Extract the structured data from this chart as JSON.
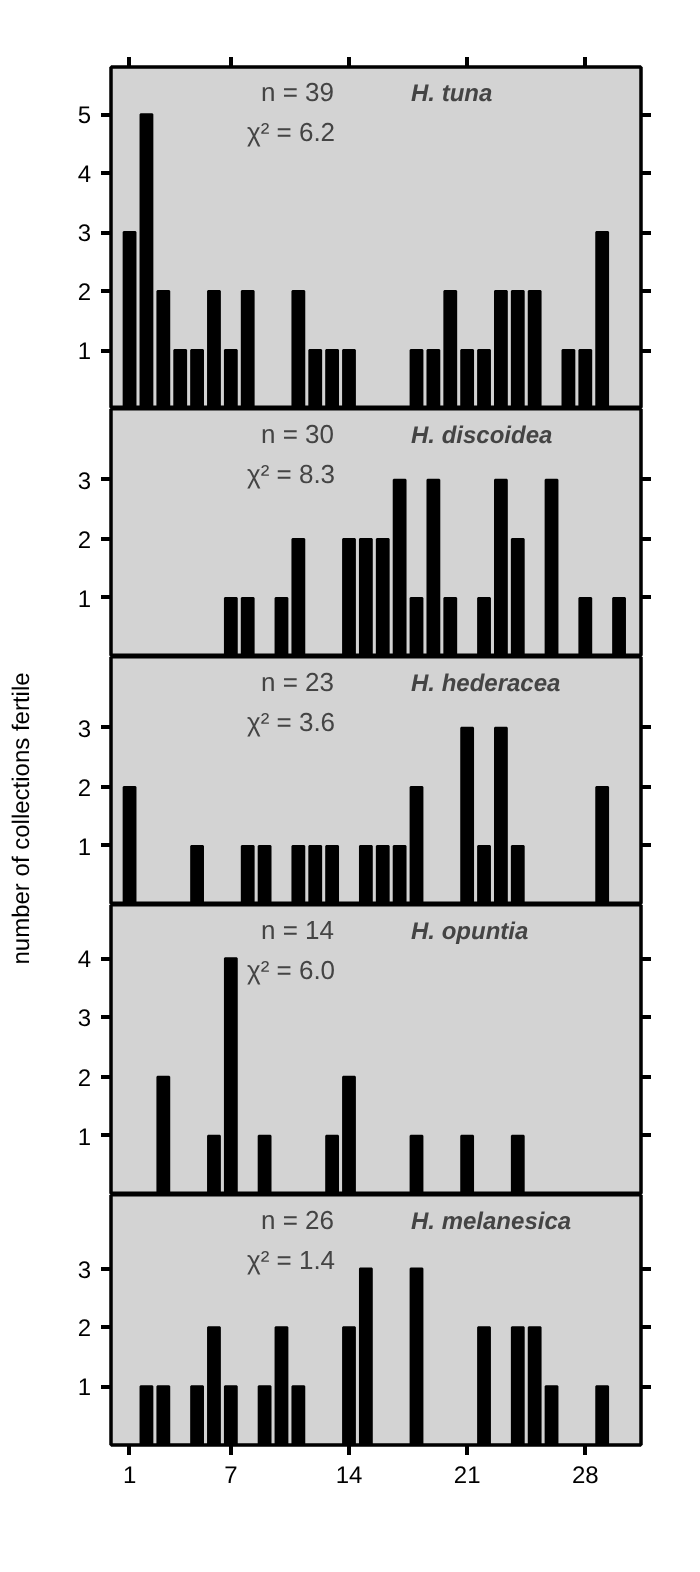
{
  "chart_data": [
    {
      "type": "bar",
      "title": "H. tuna",
      "annotations": [
        "n  = 39",
        "χ² = 6.2"
      ],
      "x": [
        1,
        2,
        3,
        4,
        5,
        6,
        7,
        8,
        11,
        12,
        13,
        14,
        18,
        19,
        20,
        21,
        22,
        23,
        24,
        25,
        27,
        28,
        29
      ],
      "values": [
        3,
        5,
        2,
        1,
        1,
        2,
        1,
        2,
        2,
        1,
        1,
        1,
        1,
        1,
        2,
        1,
        1,
        2,
        2,
        2,
        1,
        1,
        3
      ],
      "color": "#000000",
      "xlim": [
        -0.1,
        31.3
      ],
      "xticks": [
        1,
        7,
        14,
        21,
        28
      ],
      "ylim": [
        0,
        5.8
      ],
      "yticks": [
        1,
        2,
        3,
        4,
        5
      ],
      "tick_labels": "y",
      "grid": false
    },
    {
      "type": "bar",
      "title": "H. discoidea",
      "annotations": [
        "n  = 30",
        "χ² = 8.3"
      ],
      "x": [
        7,
        8,
        10,
        11,
        14,
        15,
        16,
        17,
        18,
        19,
        20,
        22,
        23,
        24,
        26,
        28,
        30
      ],
      "values": [
        1,
        1,
        1,
        2,
        2,
        2,
        2,
        3,
        1,
        3,
        1,
        1,
        3,
        2,
        3,
        1,
        1
      ],
      "color": "#000000",
      "xlim": [
        -0.1,
        31.3
      ],
      "xticks": [
        1,
        7,
        14,
        21,
        28
      ],
      "ylim": [
        0,
        4.2
      ],
      "yticks": [
        1,
        2,
        3
      ],
      "tick_labels": "y",
      "grid": false
    },
    {
      "type": "bar",
      "title": "H. hederacea",
      "ylabel": "number of collections fertile",
      "annotations": [
        "n  = 23",
        "χ² = 3.6"
      ],
      "x": [
        1,
        5,
        8,
        9,
        11,
        12,
        13,
        15,
        16,
        17,
        18,
        21,
        22,
        23,
        24,
        29
      ],
      "values": [
        2,
        1,
        1,
        1,
        1,
        1,
        1,
        1,
        1,
        1,
        2,
        3,
        1,
        3,
        1,
        2
      ],
      "color": "#000000",
      "xlim": [
        -0.1,
        31.3
      ],
      "xticks": [
        1,
        7,
        14,
        21,
        28
      ],
      "ylim": [
        0,
        4.2
      ],
      "yticks": [
        1,
        2,
        3
      ],
      "tick_labels": "y",
      "grid": false
    },
    {
      "type": "bar",
      "title": "H. opuntia",
      "annotations": [
        "n  = 14",
        "χ² = 6.0"
      ],
      "x": [
        3,
        6,
        7,
        9,
        13,
        14,
        18,
        21,
        24
      ],
      "values": [
        2,
        1,
        4,
        1,
        1,
        2,
        1,
        1,
        1
      ],
      "color": "#000000",
      "xlim": [
        -0.1,
        31.3
      ],
      "xticks": [
        1,
        7,
        14,
        21,
        28
      ],
      "ylim": [
        0,
        4.9
      ],
      "yticks": [
        1,
        2,
        3,
        4
      ],
      "tick_labels": "y",
      "grid": false
    },
    {
      "type": "bar",
      "title": "H. melanesica",
      "annotations": [
        "n  = 26",
        "χ² = 1.4"
      ],
      "x": [
        2,
        3,
        5,
        6,
        7,
        9,
        10,
        11,
        14,
        15,
        18,
        22,
        24,
        25,
        26,
        29
      ],
      "values": [
        1,
        1,
        1,
        2,
        1,
        1,
        2,
        1,
        2,
        3,
        3,
        2,
        2,
        2,
        1,
        1
      ],
      "color": "#000000",
      "xlim": [
        -0.1,
        31.3
      ],
      "xticks": [
        1,
        7,
        14,
        21,
        28
      ],
      "ylim": [
        0,
        4.25
      ],
      "yticks": [
        1,
        2,
        3
      ],
      "grid": false
    }
  ]
}
